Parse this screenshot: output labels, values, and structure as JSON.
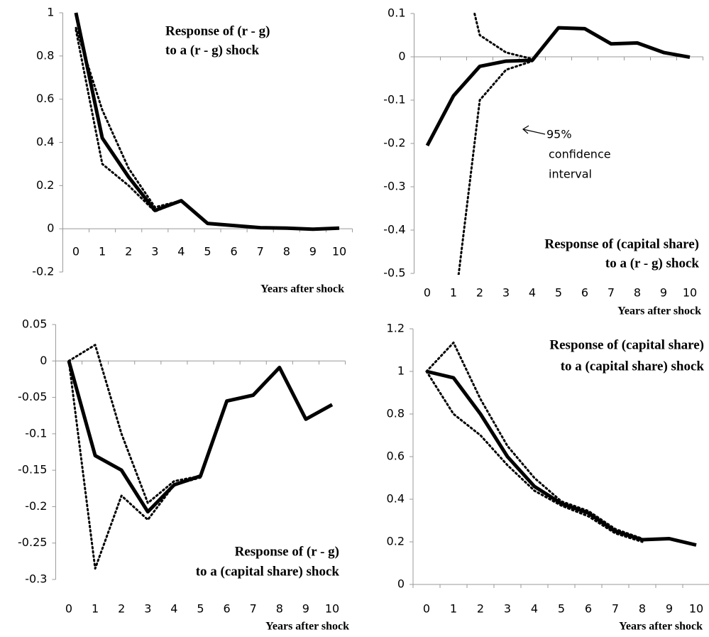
{
  "chart_data": [
    {
      "type": "line",
      "title": [
        "Response of (r - g)",
        "to a (r - g) shock"
      ],
      "x_label": "Years after shock",
      "categories": [
        "0",
        "1",
        "2",
        "3",
        "4",
        "5",
        "6",
        "7",
        "8",
        "9",
        "10"
      ],
      "series": [
        {
          "color": "#000000",
          "style": "solid",
          "values": [
            1.0,
            0.42,
            0.24,
            0.085,
            0.13,
            0.025,
            0.015,
            0.005,
            0.003,
            -0.002,
            0.003
          ]
        },
        {
          "color": "#000000",
          "style": "dotted",
          "values": [
            0.93,
            0.55,
            0.28,
            0.1,
            0.13,
            null,
            null,
            null,
            null,
            null,
            null
          ]
        },
        {
          "color": "#000000",
          "style": "dotted",
          "values": [
            0.92,
            0.3,
            0.2,
            0.08,
            0.13,
            null,
            null,
            null,
            null,
            null,
            null
          ]
        }
      ],
      "ylim": [
        -0.2,
        1
      ],
      "yticks": [
        -0.2,
        0,
        0.2,
        0.4,
        0.6,
        0.8,
        1
      ]
    },
    {
      "type": "line",
      "title": [
        "Response of (capital share)",
        "to a (r - g) shock"
      ],
      "x_label": "Years after shock",
      "annotation": [
        "95%",
        "confidence",
        "interval"
      ],
      "categories": [
        "0",
        "1",
        "2",
        "3",
        "4",
        "5",
        "6",
        "7",
        "8",
        "9",
        "10"
      ],
      "series": [
        {
          "color": "#000000",
          "style": "solid",
          "values": [
            -0.205,
            -0.09,
            -0.022,
            -0.01,
            -0.008,
            0.067,
            0.065,
            0.03,
            0.032,
            0.01,
            -0.001
          ]
        },
        {
          "color": "#000000",
          "style": "dotted",
          "values": [
            null,
            0.3,
            0.05,
            0.01,
            -0.005,
            null,
            null,
            null,
            null,
            null,
            null
          ]
        },
        {
          "color": "#000000",
          "style": "dotted",
          "values": [
            null,
            -0.6,
            -0.1,
            -0.03,
            -0.01,
            null,
            null,
            null,
            null,
            null,
            null
          ]
        }
      ],
      "ylim": [
        -0.5,
        0.1
      ],
      "yticks": [
        -0.5,
        -0.4,
        -0.3,
        -0.2,
        -0.1,
        0,
        0.1
      ]
    },
    {
      "type": "line",
      "title": [
        "Response of (r - g)",
        "to a (capital share)  shock"
      ],
      "x_label": "Years after shock",
      "categories": [
        "0",
        "1",
        "2",
        "3",
        "4",
        "5",
        "6",
        "7",
        "8",
        "9",
        "10"
      ],
      "series": [
        {
          "color": "#000000",
          "style": "solid",
          "values": [
            0,
            -0.13,
            -0.15,
            -0.207,
            -0.17,
            -0.158,
            -0.055,
            -0.047,
            -0.009,
            -0.08,
            -0.06
          ]
        },
        {
          "color": "#000000",
          "style": "dotted",
          "values": [
            0,
            0.022,
            -0.1,
            -0.195,
            -0.165,
            -0.158,
            null,
            null,
            null,
            null,
            null
          ]
        },
        {
          "color": "#000000",
          "style": "dotted",
          "values": [
            0,
            -0.285,
            -0.185,
            -0.218,
            -0.17,
            -0.16,
            null,
            null,
            null,
            null,
            null
          ]
        }
      ],
      "ylim": [
        -0.3,
        0.05
      ],
      "yticks": [
        -0.3,
        -0.25,
        -0.2,
        -0.15,
        -0.1,
        -0.05,
        0,
        0.05
      ]
    },
    {
      "type": "line",
      "title": [
        "Response of (capital share)",
        "to a (capital share) shock"
      ],
      "x_label": "Years after shock",
      "categories": [
        "0",
        "1",
        "2",
        "3",
        "4",
        "5",
        "6",
        "7",
        "8",
        "9",
        "10"
      ],
      "series": [
        {
          "color": "#000000",
          "style": "solid",
          "values": [
            1,
            0.97,
            0.8,
            0.6,
            0.46,
            0.38,
            0.335,
            0.25,
            0.21,
            0.215,
            0.185
          ]
        },
        {
          "color": "#000000",
          "style": "dotted",
          "values": [
            1,
            1.135,
            0.87,
            0.65,
            0.5,
            0.39,
            0.345,
            0.26,
            0.215,
            null,
            null
          ]
        },
        {
          "color": "#000000",
          "style": "dotted",
          "values": [
            1,
            0.8,
            0.7,
            0.56,
            0.44,
            0.37,
            0.32,
            0.24,
            0.2,
            null,
            null
          ]
        }
      ],
      "ylim": [
        0,
        1.2
      ],
      "yticks": [
        0,
        0.2,
        0.4,
        0.6,
        0.8,
        1,
        1.2
      ]
    }
  ]
}
